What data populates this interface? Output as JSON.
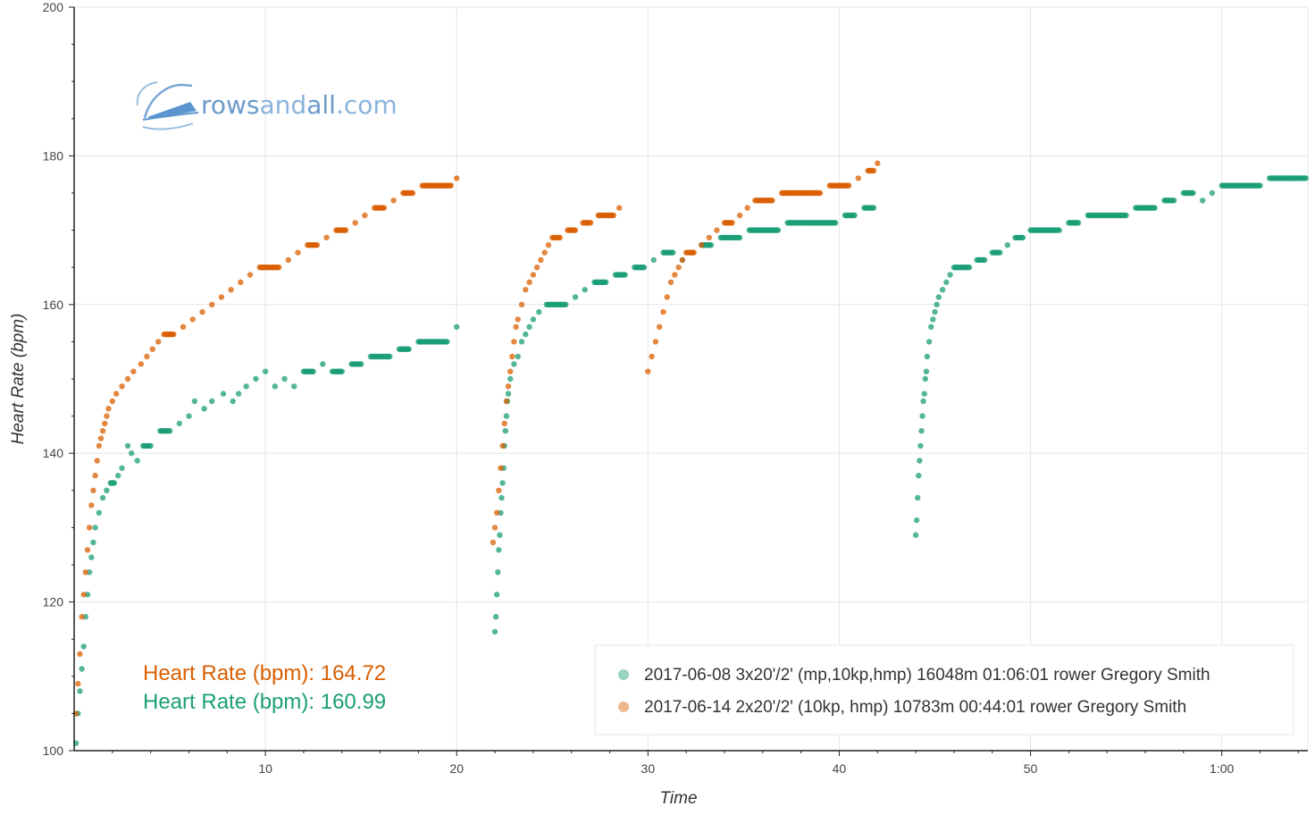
{
  "logo": {
    "word1": "rows",
    "word2": "and",
    "word3": "all",
    "word4": ".com"
  },
  "summary": [
    {
      "label": "Heart Rate (bpm): 164.72",
      "color": "#d95f02"
    },
    {
      "label": "Heart Rate (bpm): 160.99",
      "color": "#1b9e77"
    }
  ],
  "chart_data": {
    "type": "scatter",
    "xlabel": "Time",
    "ylabel": "Heart Rate (bpm)",
    "xlim": [
      0,
      64.5
    ],
    "ylim": [
      100,
      200
    ],
    "x_unit": "minutes",
    "x_ticks": [
      {
        "value": 10,
        "label": "10"
      },
      {
        "value": 20,
        "label": "20"
      },
      {
        "value": 30,
        "label": "30"
      },
      {
        "value": 40,
        "label": "40"
      },
      {
        "value": 50,
        "label": "50"
      },
      {
        "value": 60,
        "label": "1:00"
      }
    ],
    "y_ticks": [
      100,
      120,
      140,
      160,
      180,
      200
    ],
    "grid": true,
    "legend_position": "bottom-right",
    "series": [
      {
        "name": "2017-06-08 3x20'/2' (mp,10kp,hmp) 16048m 01:06:01 rower Gregory Smith",
        "color": "#1b9e77",
        "points": [
          [
            0.1,
            101
          ],
          [
            0.2,
            105
          ],
          [
            0.3,
            108
          ],
          [
            0.4,
            111
          ],
          [
            0.5,
            114
          ],
          [
            0.6,
            118
          ],
          [
            0.7,
            121
          ],
          [
            0.8,
            124
          ],
          [
            0.9,
            126
          ],
          [
            1.0,
            128
          ],
          [
            1.1,
            130
          ],
          [
            1.3,
            132
          ],
          [
            1.5,
            134
          ],
          [
            1.7,
            135
          ],
          [
            1.9,
            136
          ],
          [
            2.1,
            136
          ],
          [
            2.3,
            137
          ],
          [
            2.5,
            138
          ],
          [
            2.8,
            141
          ],
          [
            3.0,
            140
          ],
          [
            3.3,
            139
          ],
          [
            3.6,
            141
          ],
          [
            4.0,
            141
          ],
          [
            4.5,
            143
          ],
          [
            5.0,
            143
          ],
          [
            5.5,
            144
          ],
          [
            6.0,
            145
          ],
          [
            6.3,
            147
          ],
          [
            6.8,
            146
          ],
          [
            7.2,
            147
          ],
          [
            7.8,
            148
          ],
          [
            8.3,
            147
          ],
          [
            8.6,
            148
          ],
          [
            9.0,
            149
          ],
          [
            9.5,
            150
          ],
          [
            10.0,
            151
          ],
          [
            10.5,
            149
          ],
          [
            11.0,
            150
          ],
          [
            11.5,
            149
          ],
          [
            12.0,
            151
          ],
          [
            12.5,
            151
          ],
          [
            13.0,
            152
          ],
          [
            13.5,
            151
          ],
          [
            14.0,
            151
          ],
          [
            14.5,
            152
          ],
          [
            15.0,
            152
          ],
          [
            15.5,
            153
          ],
          [
            16.0,
            153
          ],
          [
            16.5,
            153
          ],
          [
            17.0,
            154
          ],
          [
            17.5,
            154
          ],
          [
            18.0,
            155
          ],
          [
            18.5,
            155
          ],
          [
            19.0,
            155
          ],
          [
            19.5,
            155
          ],
          [
            20.0,
            157
          ],
          [
            22.0,
            116
          ],
          [
            22.05,
            118
          ],
          [
            22.1,
            121
          ],
          [
            22.15,
            124
          ],
          [
            22.2,
            127
          ],
          [
            22.25,
            129
          ],
          [
            22.3,
            132
          ],
          [
            22.35,
            134
          ],
          [
            22.4,
            136
          ],
          [
            22.45,
            138
          ],
          [
            22.5,
            141
          ],
          [
            22.55,
            143
          ],
          [
            22.6,
            145
          ],
          [
            22.65,
            147
          ],
          [
            22.7,
            148
          ],
          [
            22.8,
            150
          ],
          [
            23.0,
            152
          ],
          [
            23.2,
            153
          ],
          [
            23.4,
            155
          ],
          [
            23.6,
            156
          ],
          [
            23.8,
            157
          ],
          [
            24.0,
            158
          ],
          [
            24.3,
            159
          ],
          [
            24.7,
            160
          ],
          [
            25.2,
            160
          ],
          [
            25.7,
            160
          ],
          [
            26.2,
            161
          ],
          [
            26.7,
            162
          ],
          [
            27.2,
            163
          ],
          [
            27.8,
            163
          ],
          [
            28.3,
            164
          ],
          [
            28.8,
            164
          ],
          [
            29.3,
            165
          ],
          [
            29.8,
            165
          ],
          [
            30.3,
            166
          ],
          [
            30.8,
            167
          ],
          [
            31.3,
            167
          ],
          [
            31.8,
            166
          ],
          [
            32.3,
            167
          ],
          [
            32.8,
            168
          ],
          [
            33.3,
            168
          ],
          [
            33.8,
            169
          ],
          [
            34.3,
            169
          ],
          [
            34.8,
            169
          ],
          [
            35.3,
            170
          ],
          [
            35.8,
            170
          ],
          [
            36.3,
            170
          ],
          [
            36.8,
            170
          ],
          [
            37.3,
            171
          ],
          [
            37.8,
            171
          ],
          [
            38.3,
            171
          ],
          [
            38.8,
            171
          ],
          [
            39.3,
            171
          ],
          [
            39.8,
            171
          ],
          [
            40.3,
            172
          ],
          [
            40.8,
            172
          ],
          [
            41.3,
            173
          ],
          [
            41.8,
            173
          ],
          [
            44.0,
            129
          ],
          [
            44.05,
            131
          ],
          [
            44.1,
            134
          ],
          [
            44.15,
            137
          ],
          [
            44.2,
            139
          ],
          [
            44.25,
            141
          ],
          [
            44.3,
            143
          ],
          [
            44.35,
            145
          ],
          [
            44.4,
            147
          ],
          [
            44.45,
            148
          ],
          [
            44.5,
            150
          ],
          [
            44.55,
            151
          ],
          [
            44.6,
            153
          ],
          [
            44.7,
            155
          ],
          [
            44.8,
            157
          ],
          [
            44.9,
            158
          ],
          [
            45.0,
            159
          ],
          [
            45.1,
            160
          ],
          [
            45.2,
            161
          ],
          [
            45.4,
            162
          ],
          [
            45.6,
            163
          ],
          [
            45.8,
            164
          ],
          [
            46.0,
            165
          ],
          [
            46.4,
            165
          ],
          [
            46.8,
            165
          ],
          [
            47.2,
            166
          ],
          [
            47.6,
            166
          ],
          [
            48.0,
            167
          ],
          [
            48.4,
            167
          ],
          [
            48.8,
            168
          ],
          [
            49.2,
            169
          ],
          [
            49.6,
            169
          ],
          [
            50.0,
            170
          ],
          [
            50.5,
            170
          ],
          [
            51.0,
            170
          ],
          [
            51.5,
            170
          ],
          [
            52.0,
            171
          ],
          [
            52.5,
            171
          ],
          [
            53.0,
            172
          ],
          [
            53.5,
            172
          ],
          [
            54.0,
            172
          ],
          [
            54.5,
            172
          ],
          [
            55.0,
            172
          ],
          [
            55.5,
            173
          ],
          [
            56.0,
            173
          ],
          [
            56.5,
            173
          ],
          [
            57.0,
            174
          ],
          [
            57.5,
            174
          ],
          [
            58.0,
            175
          ],
          [
            58.5,
            175
          ],
          [
            59.0,
            174
          ],
          [
            59.5,
            175
          ],
          [
            60.0,
            176
          ],
          [
            60.5,
            176
          ],
          [
            61.0,
            176
          ],
          [
            61.5,
            176
          ],
          [
            62.0,
            176
          ],
          [
            62.5,
            177
          ],
          [
            63.0,
            177
          ],
          [
            63.5,
            177
          ],
          [
            64.0,
            177
          ],
          [
            64.4,
            177
          ]
        ]
      },
      {
        "name": "2017-06-14 2x20'/2' (10kp, hmp) 10783m 00:44:01 rower Gregory Smith",
        "color": "#d95f02",
        "points": [
          [
            0.1,
            105
          ],
          [
            0.2,
            109
          ],
          [
            0.3,
            113
          ],
          [
            0.4,
            118
          ],
          [
            0.5,
            121
          ],
          [
            0.6,
            124
          ],
          [
            0.7,
            127
          ],
          [
            0.8,
            130
          ],
          [
            0.9,
            133
          ],
          [
            1.0,
            135
          ],
          [
            1.1,
            137
          ],
          [
            1.2,
            139
          ],
          [
            1.3,
            141
          ],
          [
            1.4,
            142
          ],
          [
            1.5,
            143
          ],
          [
            1.6,
            144
          ],
          [
            1.7,
            145
          ],
          [
            1.8,
            146
          ],
          [
            2.0,
            147
          ],
          [
            2.2,
            148
          ],
          [
            2.5,
            149
          ],
          [
            2.8,
            150
          ],
          [
            3.1,
            151
          ],
          [
            3.5,
            152
          ],
          [
            3.8,
            153
          ],
          [
            4.1,
            154
          ],
          [
            4.4,
            155
          ],
          [
            4.7,
            156
          ],
          [
            5.2,
            156
          ],
          [
            5.7,
            157
          ],
          [
            6.2,
            158
          ],
          [
            6.7,
            159
          ],
          [
            7.2,
            160
          ],
          [
            7.7,
            161
          ],
          [
            8.2,
            162
          ],
          [
            8.7,
            163
          ],
          [
            9.2,
            164
          ],
          [
            9.7,
            165
          ],
          [
            10.2,
            165
          ],
          [
            10.7,
            165
          ],
          [
            11.2,
            166
          ],
          [
            11.7,
            167
          ],
          [
            12.2,
            168
          ],
          [
            12.7,
            168
          ],
          [
            13.2,
            169
          ],
          [
            13.7,
            170
          ],
          [
            14.2,
            170
          ],
          [
            14.7,
            171
          ],
          [
            15.2,
            172
          ],
          [
            15.7,
            173
          ],
          [
            16.2,
            173
          ],
          [
            16.7,
            174
          ],
          [
            17.2,
            175
          ],
          [
            17.7,
            175
          ],
          [
            18.2,
            176
          ],
          [
            18.7,
            176
          ],
          [
            19.2,
            176
          ],
          [
            19.7,
            176
          ],
          [
            20.0,
            177
          ],
          [
            21.9,
            128
          ],
          [
            22.0,
            130
          ],
          [
            22.1,
            132
          ],
          [
            22.2,
            135
          ],
          [
            22.3,
            138
          ],
          [
            22.4,
            141
          ],
          [
            22.5,
            144
          ],
          [
            22.6,
            147
          ],
          [
            22.7,
            149
          ],
          [
            22.8,
            151
          ],
          [
            22.9,
            153
          ],
          [
            23.0,
            155
          ],
          [
            23.1,
            157
          ],
          [
            23.2,
            158
          ],
          [
            23.4,
            160
          ],
          [
            23.6,
            162
          ],
          [
            23.8,
            163
          ],
          [
            24.0,
            164
          ],
          [
            24.2,
            165
          ],
          [
            24.4,
            166
          ],
          [
            24.6,
            167
          ],
          [
            24.8,
            168
          ],
          [
            25.0,
            169
          ],
          [
            25.4,
            169
          ],
          [
            25.8,
            170
          ],
          [
            26.2,
            170
          ],
          [
            26.6,
            171
          ],
          [
            27.0,
            171
          ],
          [
            27.4,
            172
          ],
          [
            27.8,
            172
          ],
          [
            28.2,
            172
          ],
          [
            28.5,
            173
          ],
          [
            30.0,
            151
          ],
          [
            30.2,
            153
          ],
          [
            30.4,
            155
          ],
          [
            30.6,
            157
          ],
          [
            30.8,
            159
          ],
          [
            31.0,
            161
          ],
          [
            31.2,
            163
          ],
          [
            31.4,
            164
          ],
          [
            31.6,
            165
          ],
          [
            31.8,
            166
          ],
          [
            32.0,
            167
          ],
          [
            32.4,
            167
          ],
          [
            32.8,
            168
          ],
          [
            33.2,
            169
          ],
          [
            33.6,
            170
          ],
          [
            34.0,
            171
          ],
          [
            34.4,
            171
          ],
          [
            34.8,
            172
          ],
          [
            35.2,
            173
          ],
          [
            35.6,
            174
          ],
          [
            36.0,
            174
          ],
          [
            36.5,
            174
          ],
          [
            37.0,
            175
          ],
          [
            37.5,
            175
          ],
          [
            38.0,
            175
          ],
          [
            38.5,
            175
          ],
          [
            39.0,
            175
          ],
          [
            39.5,
            176
          ],
          [
            40.0,
            176
          ],
          [
            40.5,
            176
          ],
          [
            41.0,
            177
          ],
          [
            41.5,
            178
          ],
          [
            41.8,
            178
          ],
          [
            42.0,
            179
          ]
        ]
      }
    ]
  }
}
